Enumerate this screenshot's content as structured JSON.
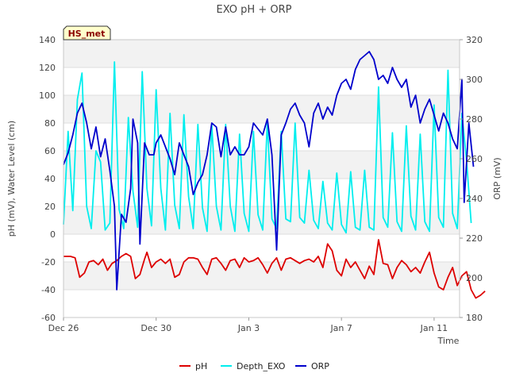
{
  "chart_data": {
    "type": "line",
    "title": "EXO pH + ORP",
    "xlabel": "Time",
    "ylabel_left": "pH (mV), Water Level (cm)",
    "ylabel_right": "ORP (mV)",
    "badge": "HS_met",
    "x_axis": {
      "unit": "days",
      "range": [
        0,
        17.1
      ],
      "ticks": [
        {
          "x": 0,
          "label": "Dec 26"
        },
        {
          "x": 4,
          "label": "Dec 30"
        },
        {
          "x": 8,
          "label": "Jan 3"
        },
        {
          "x": 12,
          "label": "Jan 7"
        },
        {
          "x": 16,
          "label": "Jan 11"
        }
      ]
    },
    "y_left": {
      "range": [
        -60,
        140
      ],
      "ticks": [
        -60,
        -40,
        -20,
        0,
        20,
        40,
        60,
        80,
        100,
        120,
        140
      ]
    },
    "y_right": {
      "range": [
        180,
        320
      ],
      "ticks": [
        180,
        200,
        220,
        240,
        260,
        280,
        300,
        320
      ]
    },
    "legend": {
      "placement": "bottom-center"
    },
    "grid": true,
    "series": [
      {
        "name": "pH",
        "axis": "left",
        "color": "#dd0000",
        "points": [
          [
            0,
            -16
          ],
          [
            0.3,
            -16
          ],
          [
            0.5,
            -17
          ],
          [
            0.7,
            -31
          ],
          [
            0.9,
            -28
          ],
          [
            1.1,
            -20
          ],
          [
            1.3,
            -19
          ],
          [
            1.5,
            -22
          ],
          [
            1.7,
            -18
          ],
          [
            1.9,
            -26
          ],
          [
            2.1,
            -21
          ],
          [
            2.3,
            -19
          ],
          [
            2.5,
            -16
          ],
          [
            2.7,
            -14
          ],
          [
            2.9,
            -16
          ],
          [
            3.1,
            -32
          ],
          [
            3.3,
            -29
          ],
          [
            3.5,
            -18
          ],
          [
            3.6,
            -13
          ],
          [
            3.8,
            -24
          ],
          [
            4.0,
            -20
          ],
          [
            4.2,
            -18
          ],
          [
            4.4,
            -21
          ],
          [
            4.6,
            -18
          ],
          [
            4.8,
            -31
          ],
          [
            5.0,
            -29
          ],
          [
            5.2,
            -20
          ],
          [
            5.4,
            -17
          ],
          [
            5.6,
            -17
          ],
          [
            5.8,
            -18
          ],
          [
            6.0,
            -24
          ],
          [
            6.2,
            -29
          ],
          [
            6.4,
            -18
          ],
          [
            6.6,
            -17
          ],
          [
            6.8,
            -21
          ],
          [
            7.0,
            -26
          ],
          [
            7.2,
            -19
          ],
          [
            7.4,
            -18
          ],
          [
            7.6,
            -24
          ],
          [
            7.8,
            -17
          ],
          [
            8.0,
            -20
          ],
          [
            8.2,
            -19
          ],
          [
            8.4,
            -17
          ],
          [
            8.6,
            -22
          ],
          [
            8.8,
            -28
          ],
          [
            9.0,
            -21
          ],
          [
            9.2,
            -17
          ],
          [
            9.4,
            -26
          ],
          [
            9.6,
            -18
          ],
          [
            9.8,
            -17
          ],
          [
            10.0,
            -19
          ],
          [
            10.2,
            -21
          ],
          [
            10.4,
            -19
          ],
          [
            10.6,
            -18
          ],
          [
            10.8,
            -20
          ],
          [
            11.0,
            -16
          ],
          [
            11.2,
            -24
          ],
          [
            11.4,
            -7
          ],
          [
            11.6,
            -12
          ],
          [
            11.8,
            -26
          ],
          [
            12.0,
            -30
          ],
          [
            12.2,
            -18
          ],
          [
            12.4,
            -24
          ],
          [
            12.6,
            -20
          ],
          [
            12.8,
            -26
          ],
          [
            13.0,
            -32
          ],
          [
            13.2,
            -23
          ],
          [
            13.4,
            -29
          ],
          [
            13.6,
            -4
          ],
          [
            13.8,
            -21
          ],
          [
            14.0,
            -22
          ],
          [
            14.2,
            -32
          ],
          [
            14.4,
            -24
          ],
          [
            14.6,
            -19
          ],
          [
            14.8,
            -22
          ],
          [
            15.0,
            -27
          ],
          [
            15.2,
            -24
          ],
          [
            15.4,
            -28
          ],
          [
            15.6,
            -20
          ],
          [
            15.8,
            -13
          ],
          [
            16.0,
            -28
          ],
          [
            16.2,
            -38
          ],
          [
            16.4,
            -40
          ],
          [
            16.6,
            -31
          ],
          [
            16.8,
            -24
          ],
          [
            17.0,
            -37
          ],
          [
            17.2,
            -30
          ],
          [
            17.4,
            -27
          ],
          [
            17.6,
            -40
          ],
          [
            17.8,
            -46
          ],
          [
            18.0,
            -44
          ],
          [
            18.2,
            -41
          ]
        ]
      },
      {
        "name": "Depth_EXO",
        "axis": "left",
        "color": "#00eeee",
        "points": [
          [
            0,
            7
          ],
          [
            0.2,
            74
          ],
          [
            0.4,
            17
          ],
          [
            0.6,
            97
          ],
          [
            0.8,
            116
          ],
          [
            1.0,
            20
          ],
          [
            1.2,
            4
          ],
          [
            1.4,
            60
          ],
          [
            1.6,
            52
          ],
          [
            1.8,
            3
          ],
          [
            2.0,
            8
          ],
          [
            2.2,
            124
          ],
          [
            2.4,
            18
          ],
          [
            2.6,
            4
          ],
          [
            2.8,
            84
          ],
          [
            3.0,
            31
          ],
          [
            3.2,
            5
          ],
          [
            3.4,
            117
          ],
          [
            3.6,
            33
          ],
          [
            3.8,
            6
          ],
          [
            4.0,
            104
          ],
          [
            4.2,
            33
          ],
          [
            4.4,
            3
          ],
          [
            4.6,
            87
          ],
          [
            4.8,
            21
          ],
          [
            5.0,
            4
          ],
          [
            5.2,
            86
          ],
          [
            5.4,
            27
          ],
          [
            5.6,
            4
          ],
          [
            5.8,
            79
          ],
          [
            6.0,
            19
          ],
          [
            6.2,
            2
          ],
          [
            6.4,
            79
          ],
          [
            6.6,
            20
          ],
          [
            6.8,
            3
          ],
          [
            7.0,
            79
          ],
          [
            7.2,
            20
          ],
          [
            7.4,
            2
          ],
          [
            7.6,
            72
          ],
          [
            7.8,
            15
          ],
          [
            8.0,
            2
          ],
          [
            8.2,
            74
          ],
          [
            8.4,
            14
          ],
          [
            8.6,
            3
          ],
          [
            8.8,
            81
          ],
          [
            9.0,
            11
          ],
          [
            9.2,
            4
          ],
          [
            9.4,
            74
          ],
          [
            9.6,
            11
          ],
          [
            9.8,
            9
          ],
          [
            10.0,
            80
          ],
          [
            10.2,
            12
          ],
          [
            10.4,
            8
          ],
          [
            10.6,
            46
          ],
          [
            10.8,
            10
          ],
          [
            11.0,
            4
          ],
          [
            11.2,
            38
          ],
          [
            11.4,
            8
          ],
          [
            11.6,
            3
          ],
          [
            11.8,
            44
          ],
          [
            12.0,
            7
          ],
          [
            12.2,
            1
          ],
          [
            12.4,
            45
          ],
          [
            12.6,
            5
          ],
          [
            12.8,
            3
          ],
          [
            13.0,
            46
          ],
          [
            13.2,
            5
          ],
          [
            13.4,
            3
          ],
          [
            13.6,
            106
          ],
          [
            13.8,
            12
          ],
          [
            14.0,
            5
          ],
          [
            14.2,
            73
          ],
          [
            14.4,
            9
          ],
          [
            14.6,
            2
          ],
          [
            14.8,
            78
          ],
          [
            15.0,
            13
          ],
          [
            15.2,
            3
          ],
          [
            15.4,
            72
          ],
          [
            15.6,
            9
          ],
          [
            15.8,
            2
          ],
          [
            16.0,
            93
          ],
          [
            16.2,
            12
          ],
          [
            16.4,
            5
          ],
          [
            16.6,
            118
          ],
          [
            16.8,
            15
          ],
          [
            17.0,
            4
          ],
          [
            17.2,
            87
          ],
          [
            17.4,
            53
          ],
          [
            17.6,
            8
          ]
        ]
      },
      {
        "name": "ORP",
        "axis": "right",
        "color": "#0000cc",
        "points": [
          [
            0,
            257
          ],
          [
            0.2,
            263
          ],
          [
            0.4,
            272
          ],
          [
            0.6,
            283
          ],
          [
            0.8,
            288
          ],
          [
            1.0,
            278
          ],
          [
            1.2,
            265
          ],
          [
            1.4,
            276
          ],
          [
            1.6,
            261
          ],
          [
            1.8,
            270
          ],
          [
            2.0,
            254
          ],
          [
            2.2,
            236
          ],
          [
            2.3,
            194
          ],
          [
            2.5,
            232
          ],
          [
            2.7,
            228
          ],
          [
            2.9,
            245
          ],
          [
            3.0,
            280
          ],
          [
            3.2,
            268
          ],
          [
            3.3,
            217
          ],
          [
            3.5,
            268
          ],
          [
            3.7,
            262
          ],
          [
            3.9,
            262
          ],
          [
            4.0,
            268
          ],
          [
            4.2,
            272
          ],
          [
            4.4,
            266
          ],
          [
            4.6,
            260
          ],
          [
            4.8,
            252
          ],
          [
            5.0,
            268
          ],
          [
            5.2,
            262
          ],
          [
            5.4,
            256
          ],
          [
            5.6,
            242
          ],
          [
            5.8,
            248
          ],
          [
            6.0,
            252
          ],
          [
            6.2,
            262
          ],
          [
            6.4,
            278
          ],
          [
            6.6,
            276
          ],
          [
            6.8,
            261
          ],
          [
            7.0,
            276
          ],
          [
            7.2,
            262
          ],
          [
            7.4,
            266
          ],
          [
            7.6,
            262
          ],
          [
            7.8,
            262
          ],
          [
            8.0,
            266
          ],
          [
            8.2,
            278
          ],
          [
            8.4,
            275
          ],
          [
            8.6,
            272
          ],
          [
            8.8,
            280
          ],
          [
            9.0,
            262
          ],
          [
            9.2,
            214
          ],
          [
            9.4,
            272
          ],
          [
            9.6,
            278
          ],
          [
            9.8,
            285
          ],
          [
            10.0,
            288
          ],
          [
            10.2,
            282
          ],
          [
            10.4,
            278
          ],
          [
            10.6,
            266
          ],
          [
            10.8,
            283
          ],
          [
            11.0,
            288
          ],
          [
            11.2,
            280
          ],
          [
            11.4,
            286
          ],
          [
            11.6,
            282
          ],
          [
            11.8,
            292
          ],
          [
            12.0,
            298
          ],
          [
            12.2,
            300
          ],
          [
            12.4,
            295
          ],
          [
            12.6,
            305
          ],
          [
            12.8,
            310
          ],
          [
            13.0,
            312
          ],
          [
            13.2,
            314
          ],
          [
            13.4,
            310
          ],
          [
            13.6,
            300
          ],
          [
            13.8,
            302
          ],
          [
            14.0,
            298
          ],
          [
            14.2,
            306
          ],
          [
            14.4,
            300
          ],
          [
            14.6,
            296
          ],
          [
            14.8,
            300
          ],
          [
            15.0,
            286
          ],
          [
            15.2,
            292
          ],
          [
            15.4,
            278
          ],
          [
            15.6,
            285
          ],
          [
            15.8,
            290
          ],
          [
            16.0,
            282
          ],
          [
            16.2,
            274
          ],
          [
            16.4,
            283
          ],
          [
            16.6,
            278
          ],
          [
            16.8,
            270
          ],
          [
            17.0,
            265
          ],
          [
            17.2,
            300
          ],
          [
            17.3,
            238
          ],
          [
            17.5,
            278
          ],
          [
            17.7,
            256
          ]
        ]
      }
    ]
  }
}
